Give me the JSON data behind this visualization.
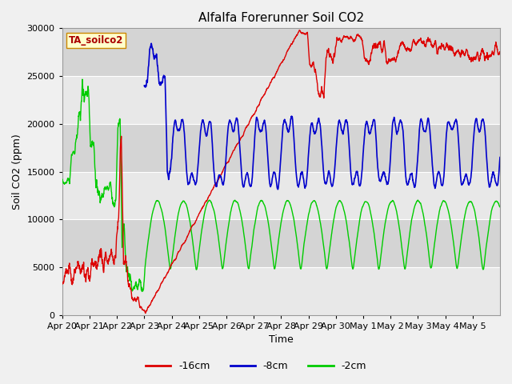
{
  "title": "Alfalfa Forerunner Soil CO2",
  "ylabel": "Soil CO2 (ppm)",
  "xlabel": "Time",
  "ylim": [
    0,
    30000
  ],
  "annotation": "TA_soilco2",
  "legend_labels": [
    "-16cm",
    "-8cm",
    "-2cm"
  ],
  "legend_colors": [
    "#dd0000",
    "#0000cc",
    "#00cc00"
  ],
  "x_tick_labels": [
    "Apr 20",
    "Apr 21",
    "Apr 22",
    "Apr 23",
    "Apr 24",
    "Apr 25",
    "Apr 26",
    "Apr 27",
    "Apr 28",
    "Apr 29",
    "Apr 30",
    "May 1",
    "May 2",
    "May 3",
    "May 4",
    "May 5"
  ],
  "band_colors": [
    "#e8e8e8",
    "#d8d8d8",
    "#e8e8e8",
    "#d8d8d8",
    "#e8e8e8",
    "#d8d8d8"
  ],
  "fig_bg": "#f0f0f0",
  "title_fontsize": 11,
  "axis_label_fontsize": 9,
  "tick_fontsize": 8
}
